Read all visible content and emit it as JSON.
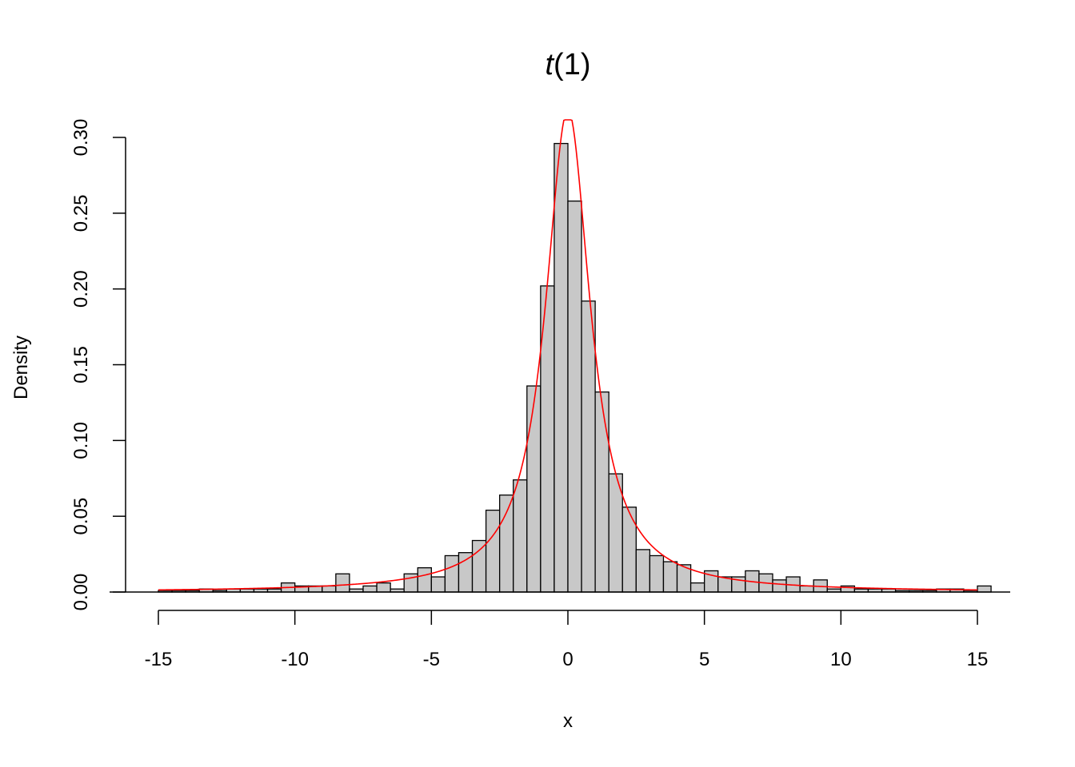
{
  "chart_data": {
    "type": "bar",
    "title": {
      "italic": "t",
      "rest": "(1)"
    },
    "xlabel": "x",
    "ylabel": "Density",
    "xlim": [
      -15,
      15
    ],
    "ylim": [
      0,
      0.3
    ],
    "x_ticks": [
      -15,
      -10,
      -5,
      0,
      5,
      10,
      15
    ],
    "x_tick_labels": [
      "-15",
      "-10",
      "-5",
      "0",
      "5",
      "10",
      "15"
    ],
    "y_ticks": [
      0,
      0.05,
      0.1,
      0.15,
      0.2,
      0.25,
      0.3
    ],
    "y_tick_labels": [
      "0.00",
      "0.05",
      "0.10",
      "0.15",
      "0.20",
      "0.25",
      "0.30"
    ],
    "grid": false,
    "bar_fill": "#c8c8c8",
    "bar_stroke": "#000000",
    "bin_width": 0.5,
    "bins": [
      {
        "x0": -15.0,
        "value": 0.001
      },
      {
        "x0": -14.5,
        "value": 0.001
      },
      {
        "x0": -14.0,
        "value": 0.001
      },
      {
        "x0": -13.5,
        "value": 0.002
      },
      {
        "x0": -13.0,
        "value": 0.001
      },
      {
        "x0": -12.5,
        "value": 0.002
      },
      {
        "x0": -12.0,
        "value": 0.002
      },
      {
        "x0": -11.5,
        "value": 0.002
      },
      {
        "x0": -11.0,
        "value": 0.002
      },
      {
        "x0": -10.5,
        "value": 0.006
      },
      {
        "x0": -10.0,
        "value": 0.004
      },
      {
        "x0": -9.5,
        "value": 0.004
      },
      {
        "x0": -9.0,
        "value": 0.004
      },
      {
        "x0": -8.5,
        "value": 0.012
      },
      {
        "x0": -8.0,
        "value": 0.002
      },
      {
        "x0": -7.5,
        "value": 0.004
      },
      {
        "x0": -7.0,
        "value": 0.006
      },
      {
        "x0": -6.5,
        "value": 0.002
      },
      {
        "x0": -6.0,
        "value": 0.012
      },
      {
        "x0": -5.5,
        "value": 0.016
      },
      {
        "x0": -5.0,
        "value": 0.01
      },
      {
        "x0": -4.5,
        "value": 0.024
      },
      {
        "x0": -4.0,
        "value": 0.026
      },
      {
        "x0": -3.5,
        "value": 0.034
      },
      {
        "x0": -3.0,
        "value": 0.054
      },
      {
        "x0": -2.5,
        "value": 0.064
      },
      {
        "x0": -2.0,
        "value": 0.074
      },
      {
        "x0": -1.5,
        "value": 0.136
      },
      {
        "x0": -1.0,
        "value": 0.202
      },
      {
        "x0": -0.5,
        "value": 0.296
      },
      {
        "x0": 0.0,
        "value": 0.258
      },
      {
        "x0": 0.5,
        "value": 0.192
      },
      {
        "x0": 1.0,
        "value": 0.132
      },
      {
        "x0": 1.5,
        "value": 0.078
      },
      {
        "x0": 2.0,
        "value": 0.056
      },
      {
        "x0": 2.5,
        "value": 0.028
      },
      {
        "x0": 3.0,
        "value": 0.024
      },
      {
        "x0": 3.5,
        "value": 0.02
      },
      {
        "x0": 4.0,
        "value": 0.018
      },
      {
        "x0": 4.5,
        "value": 0.006
      },
      {
        "x0": 5.0,
        "value": 0.014
      },
      {
        "x0": 5.5,
        "value": 0.01
      },
      {
        "x0": 6.0,
        "value": 0.01
      },
      {
        "x0": 6.5,
        "value": 0.014
      },
      {
        "x0": 7.0,
        "value": 0.012
      },
      {
        "x0": 7.5,
        "value": 0.008
      },
      {
        "x0": 8.0,
        "value": 0.01
      },
      {
        "x0": 8.5,
        "value": 0.004
      },
      {
        "x0": 9.0,
        "value": 0.008
      },
      {
        "x0": 9.5,
        "value": 0.002
      },
      {
        "x0": 10.0,
        "value": 0.004
      },
      {
        "x0": 10.5,
        "value": 0.002
      },
      {
        "x0": 11.0,
        "value": 0.002
      },
      {
        "x0": 11.5,
        "value": 0.002
      },
      {
        "x0": 12.0,
        "value": 0.001
      },
      {
        "x0": 12.5,
        "value": 0.001
      },
      {
        "x0": 13.0,
        "value": 0.001
      },
      {
        "x0": 13.5,
        "value": 0.002
      },
      {
        "x0": 14.0,
        "value": 0.002
      },
      {
        "x0": 14.5,
        "value": 0.001
      },
      {
        "x0": 15.0,
        "value": 0.004
      }
    ],
    "curve": {
      "color": "#ff0000",
      "x_range": [
        -15,
        15
      ]
    }
  }
}
